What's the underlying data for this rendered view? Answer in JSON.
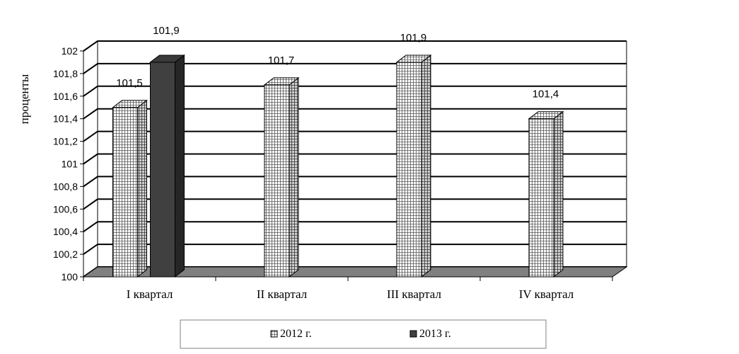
{
  "chart_data": {
    "type": "bar",
    "title": "",
    "xlabel": "",
    "ylabel": "проценты",
    "ylim": [
      100,
      102
    ],
    "yticks": [
      "100",
      "100,2",
      "100,4",
      "100,6",
      "100,8",
      "101",
      "101,2",
      "101,4",
      "101,6",
      "101,8",
      "102"
    ],
    "categories": [
      "I квартал",
      "II квартал",
      "III квартал",
      "IV квартал"
    ],
    "series": [
      {
        "name": "2012 г.",
        "values": [
          101.5,
          101.7,
          101.9,
          101.4
        ],
        "labels": [
          "101,5",
          "101,7",
          "101,9",
          "101,4"
        ]
      },
      {
        "name": "2013 г.",
        "values": [
          101.9,
          null,
          null,
          null
        ],
        "labels": [
          "101,9",
          null,
          null,
          null
        ]
      }
    ],
    "grid": true,
    "legend_position": "bottom",
    "colors": {
      "series_2012": "#e6e6e6",
      "series_2013": "#404040",
      "floor": "#808080",
      "grid": "#000000"
    }
  }
}
